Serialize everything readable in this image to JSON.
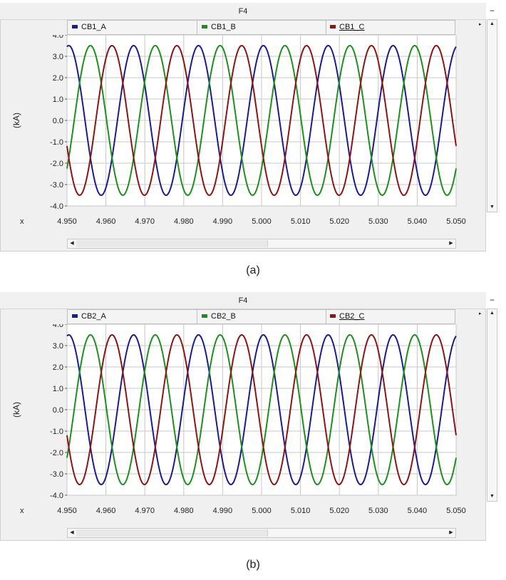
{
  "panels": [
    {
      "title": "F4",
      "caption": "(a)",
      "legend": [
        "CB1_A",
        "CB1_B",
        "CB1_C"
      ],
      "x_label": "x",
      "y_label": "(kA)"
    },
    {
      "title": "F4",
      "caption": "(b)",
      "legend": [
        "CB2_A",
        "CB2_B",
        "CB2_C"
      ],
      "x_label": "x",
      "y_label": "(kA)"
    }
  ],
  "colors": {
    "phase_a": "#1b1b8c",
    "phase_b": "#1e8f1e",
    "phase_c": "#8b1414",
    "plot_bg": "#ffffff",
    "grid": "#c7c7c7"
  },
  "icons": {
    "minimize": "−",
    "expand": "▸",
    "scroll_up": "▲",
    "scroll_down": "▼",
    "scroll_left": "◀",
    "scroll_right": "▶"
  },
  "chart_data": [
    {
      "type": "line",
      "title": "F4",
      "xlabel": "x",
      "ylabel": "(kA)",
      "xlim": [
        4.95,
        5.05
      ],
      "ylim": [
        -4.0,
        4.0
      ],
      "x_ticks": [
        "4.950",
        "4.960",
        "4.970",
        "4.980",
        "4.990",
        "5.000",
        "5.010",
        "5.020",
        "5.030",
        "5.040",
        "5.050"
      ],
      "y_ticks": [
        "4.0",
        "3.0",
        "2.0",
        "1.0",
        "0.0",
        "-1.0",
        "-2.0",
        "-3.0",
        "-4.0"
      ],
      "grid": true,
      "legend_position": "top",
      "series": [
        {
          "name": "CB1_A",
          "waveform": "sine",
          "amplitude_kA": 3.5,
          "frequency_hz": 60,
          "phase_deg": 80
        },
        {
          "name": "CB1_B",
          "waveform": "sine",
          "amplitude_kA": 3.5,
          "frequency_hz": 60,
          "phase_deg": -40
        },
        {
          "name": "CB1_C",
          "waveform": "sine",
          "amplitude_kA": 3.5,
          "frequency_hz": 60,
          "phase_deg": -160
        }
      ]
    },
    {
      "type": "line",
      "title": "F4",
      "xlabel": "x",
      "ylabel": "(kA)",
      "xlim": [
        4.95,
        5.05
      ],
      "ylim": [
        -4.0,
        4.0
      ],
      "x_ticks": [
        "4.950",
        "4.960",
        "4.970",
        "4.980",
        "4.990",
        "5.000",
        "5.010",
        "5.020",
        "5.030",
        "5.040",
        "5.050"
      ],
      "y_ticks": [
        "4.0",
        "3.0",
        "2.0",
        "1.0",
        "0.0",
        "-1.0",
        "-2.0",
        "-3.0",
        "-4.0"
      ],
      "grid": true,
      "legend_position": "top",
      "series": [
        {
          "name": "CB2_A",
          "waveform": "sine",
          "amplitude_kA": 3.5,
          "frequency_hz": 60,
          "phase_deg": 80
        },
        {
          "name": "CB2_B",
          "waveform": "sine",
          "amplitude_kA": 3.5,
          "frequency_hz": 60,
          "phase_deg": -40
        },
        {
          "name": "CB2_C",
          "waveform": "sine",
          "amplitude_kA": 3.5,
          "frequency_hz": 60,
          "phase_deg": -160
        }
      ]
    }
  ]
}
